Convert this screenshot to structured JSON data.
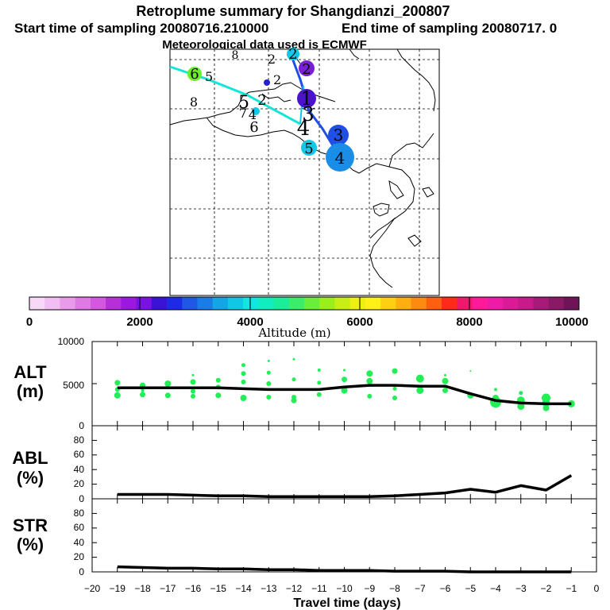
{
  "title": "Retroplume summary for Shangdianzi_200807",
  "start_text": "Start time of sampling 20080716.210000",
  "end_text": "End time of sampling 20080717.    0",
  "met_text": "Meteorological data used is ECMWF",
  "colors": {
    "alt_dots": "#22ee55",
    "line": "#000000",
    "map_line_1": "#11e6d9",
    "map_line_2": "#1f4fe6"
  },
  "map": {
    "labels": [
      {
        "t": "6",
        "color": "#6af02a"
      },
      {
        "t": "5",
        "color": "#12c8e6"
      },
      {
        "t": "8",
        "color": "#12c8e6"
      },
      {
        "t": "2",
        "color": "#12c8e6"
      },
      {
        "t": "2",
        "color": "#2222c8"
      },
      {
        "t": "2",
        "color": "#7a1fd6"
      },
      {
        "t": "3",
        "color": "#1f4fe6"
      },
      {
        "t": "4",
        "color": "#1a8ee6"
      },
      {
        "t": "5",
        "color": "#12c8e6"
      },
      {
        "t": "4",
        "color": "#111111"
      }
    ]
  },
  "colorbar": {
    "label": "Altitude (m)",
    "ticks": [
      "0",
      "2000",
      "4000",
      "6000",
      "8000",
      "10000"
    ],
    "colors": [
      "#f7d9f7",
      "#f2bdf2",
      "#e89be8",
      "#df79e6",
      "#d357e0",
      "#b62fd8",
      "#9a18e0",
      "#7a12e6",
      "#3a14d6",
      "#1d2ae8",
      "#1f57e6",
      "#1a7ce6",
      "#12a6e6",
      "#0fc8e6",
      "#12e6e0",
      "#10eec0",
      "#1aee9a",
      "#3aee6a",
      "#6aee3a",
      "#9aee1a",
      "#c8ee12",
      "#eef012",
      "#fff015",
      "#ffd010",
      "#ffb010",
      "#ff8a10",
      "#ff6010",
      "#ff2a1a",
      "#f0186a",
      "#ff1a9a",
      "#f01aa8",
      "#dc1a98",
      "#c81a8a",
      "#a81a7a",
      "#8a1a68",
      "#70145a"
    ]
  },
  "chart_data": [
    {
      "type": "line",
      "name": "ALT",
      "ylabel": "ALT",
      "yunit": "(m)",
      "ylim": [
        0,
        10000
      ],
      "yticks": [
        "10000",
        "5000",
        "0"
      ],
      "x": [
        -19,
        -18,
        -17,
        -16,
        -15,
        -14,
        -13,
        -12,
        -11,
        -10,
        -9,
        -8,
        -7,
        -6,
        -5,
        -4,
        -3,
        -2,
        -1
      ],
      "values": [
        4500,
        4500,
        4500,
        4500,
        4500,
        4400,
        4300,
        4300,
        4300,
        4600,
        4800,
        4800,
        4700,
        4700,
        3800,
        3000,
        2700,
        2600,
        2600
      ],
      "scatter": [
        [
          -19,
          5100,
          3.5
        ],
        [
          -19,
          4300,
          3
        ],
        [
          -19,
          3600,
          4
        ],
        [
          -18,
          4800,
          3.5
        ],
        [
          -18,
          3700,
          3.5
        ],
        [
          -18,
          4200,
          2
        ],
        [
          -17,
          5000,
          4
        ],
        [
          -17,
          3600,
          3.5
        ],
        [
          -16,
          5200,
          3.5
        ],
        [
          -16,
          4100,
          3
        ],
        [
          -16,
          3500,
          3
        ],
        [
          -16,
          6000,
          1.5
        ],
        [
          -15,
          5400,
          3
        ],
        [
          -15,
          4600,
          3
        ],
        [
          -15,
          3600,
          3.5
        ],
        [
          -14,
          7200,
          2.5
        ],
        [
          -14,
          6200,
          3
        ],
        [
          -14,
          5200,
          3
        ],
        [
          -14,
          3300,
          4
        ],
        [
          -13,
          7700,
          1.5
        ],
        [
          -13,
          6300,
          2.5
        ],
        [
          -13,
          5000,
          3
        ],
        [
          -13,
          3400,
          3
        ],
        [
          -12,
          7900,
          1.5
        ],
        [
          -12,
          5500,
          2.5
        ],
        [
          -12,
          3400,
          3
        ],
        [
          -12,
          3000,
          3.5
        ],
        [
          -11,
          6600,
          2
        ],
        [
          -11,
          5100,
          2.5
        ],
        [
          -11,
          3700,
          3
        ],
        [
          -10,
          6600,
          1.5
        ],
        [
          -10,
          5500,
          3.5
        ],
        [
          -10,
          4200,
          4
        ],
        [
          -9,
          6200,
          4
        ],
        [
          -9,
          5300,
          4
        ],
        [
          -9,
          3500,
          3
        ],
        [
          -8,
          6500,
          3.5
        ],
        [
          -8,
          4400,
          2.5
        ],
        [
          -8,
          3300,
          3
        ],
        [
          -7,
          5600,
          5
        ],
        [
          -7,
          4200,
          4.5
        ],
        [
          -6,
          6000,
          1.5
        ],
        [
          -6,
          5300,
          4
        ],
        [
          -6,
          4200,
          3.5
        ],
        [
          -5,
          6500,
          1
        ],
        [
          -5,
          3600,
          4
        ],
        [
          -4,
          4300,
          2
        ],
        [
          -4,
          2800,
          7
        ],
        [
          -4,
          3300,
          4
        ],
        [
          -3,
          3900,
          2.5
        ],
        [
          -3,
          3000,
          5
        ],
        [
          -3,
          2300,
          4.5
        ],
        [
          -2,
          3300,
          5.5
        ],
        [
          -2,
          2700,
          5
        ],
        [
          -2,
          2100,
          4
        ],
        [
          -1,
          2600,
          4.5
        ]
      ]
    },
    {
      "type": "line",
      "name": "ABL",
      "ylabel": "ABL",
      "yunit": "(%)",
      "ylim": [
        0,
        100
      ],
      "yticks": [
        "80",
        "60",
        "40",
        "20",
        "0"
      ],
      "x": [
        -19,
        -18,
        -17,
        -16,
        -15,
        -14,
        -13,
        -12,
        -11,
        -10,
        -9,
        -8,
        -7,
        -6,
        -5,
        -4,
        -3,
        -2,
        -1
      ],
      "values": [
        6,
        6,
        6,
        5,
        4,
        4,
        3,
        3,
        3,
        3,
        3,
        4,
        6,
        8,
        13,
        9,
        18,
        12,
        32
      ]
    },
    {
      "type": "line",
      "name": "STR",
      "ylabel": "STR",
      "yunit": "(%)",
      "ylim": [
        0,
        100
      ],
      "yticks": [
        "80",
        "60",
        "40",
        "20",
        "0"
      ],
      "x": [
        -19,
        -18,
        -17,
        -16,
        -15,
        -14,
        -13,
        -12,
        -11,
        -10,
        -9,
        -8,
        -7,
        -6,
        -5,
        -4,
        -3,
        -2,
        -1
      ],
      "values": [
        7,
        6,
        5,
        5,
        4,
        4,
        3,
        3,
        2,
        2,
        2,
        1,
        1,
        1,
        0,
        0,
        0,
        0,
        0
      ]
    }
  ],
  "x_axis": {
    "xlabel": "Travel time (days)",
    "xlim": [
      -20,
      0
    ],
    "ticks": [
      "−20",
      "−19",
      "−18",
      "−17",
      "−16",
      "−15",
      "−14",
      "−13",
      "−12",
      "−11",
      "−10",
      "−9",
      "−8",
      "−7",
      "−6",
      "−5",
      "−4",
      "−3",
      "−2",
      "−1",
      "0"
    ]
  }
}
